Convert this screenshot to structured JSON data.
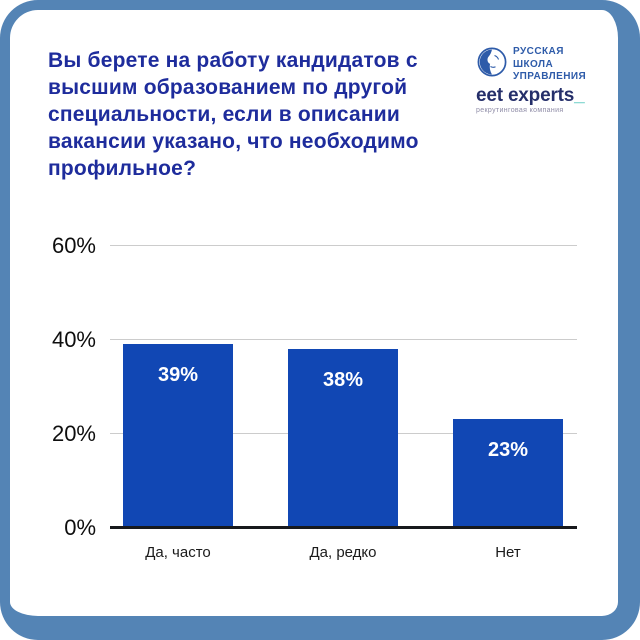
{
  "title": "Вы берете на работу кандидатов с высшим образованием по другой специальности, если в описании вакансии указано, что необходимо профильное?",
  "logos": {
    "rsu": {
      "line1": "РУССКАЯ",
      "line2": "ШКОЛА",
      "line3": "УПРАВЛЕНИЯ",
      "color": "#2e5ba9"
    },
    "get_experts": {
      "wordmark": "eet experts",
      "underscore": "_",
      "tagline": "рекрутинговая компания",
      "wordmark_color": "#252f6a",
      "underscore_color": "#3cbfb4"
    }
  },
  "chart_data": {
    "type": "bar",
    "title": "Вы берете на работу кандидатов с высшим образованием по другой специальности, если в описании вакансии указано, что необходимо профильное?",
    "categories": [
      "Да, часто",
      "Да, редко",
      "Нет"
    ],
    "values": [
      39,
      38,
      23
    ],
    "value_labels": [
      "39%",
      "38%",
      "23%"
    ],
    "yticks": [
      {
        "value": 0,
        "label": "0%"
      },
      {
        "value": 20,
        "label": "20%"
      },
      {
        "value": 40,
        "label": "40%"
      },
      {
        "value": 60,
        "label": "60%"
      }
    ],
    "ylim": [
      0,
      60
    ],
    "xlabel": "",
    "ylabel": "",
    "grid": true,
    "legend": "none",
    "bar_color": "#1147b4",
    "value_label_color": "#ffffff",
    "gridline_color": "#cccccc",
    "axis_color": "#17191d"
  },
  "colors": {
    "frame_border": "#5484b5",
    "card_background": "#ffffff",
    "title_text": "#1e2c9c"
  }
}
